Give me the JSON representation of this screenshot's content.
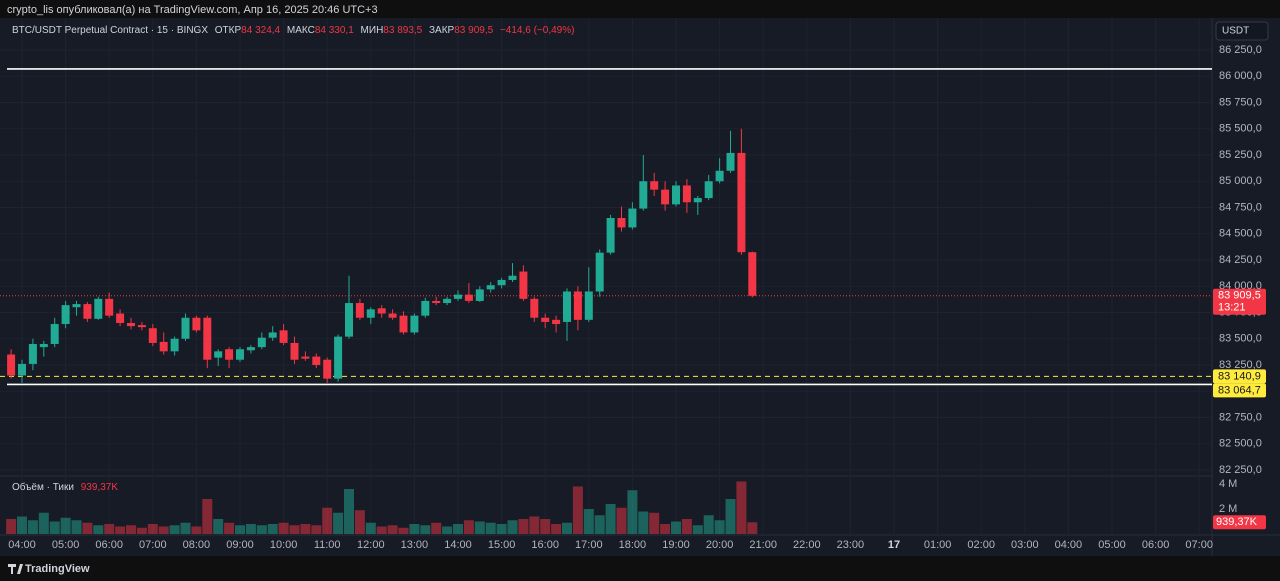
{
  "header": "crypto_lis опубликовал(а) на TradingView.com, Апр 16, 2025 20:46 UTC+3",
  "footer": "TradingView",
  "chart_data": {
    "type": "candlestick",
    "symbol": "BTC/USDT Perpetual Contract · 15 · BINGX",
    "legend": {
      "open_label": "ОТКР",
      "open": "84 324,4",
      "high_label": "МАКС",
      "high": "84 330,1",
      "low_label": "МИН",
      "low": "83 893,5",
      "close_label": "ЗАКР",
      "close": "83 909,5",
      "change": "−414,6 (−0,49%)"
    },
    "currency": "USDT",
    "up_color": "#22ab94",
    "down_color": "#f23645",
    "x": [
      "03:45",
      "04:00",
      "04:15",
      "04:30",
      "04:45",
      "05:00",
      "05:15",
      "05:30",
      "05:45",
      "06:00",
      "06:15",
      "06:30",
      "06:45",
      "07:00",
      "07:15",
      "07:30",
      "07:45",
      "08:00",
      "08:15",
      "08:30",
      "08:45",
      "09:00",
      "09:15",
      "09:30",
      "09:45",
      "10:00",
      "10:15",
      "10:30",
      "10:45",
      "11:00",
      "11:15",
      "11:30",
      "11:45",
      "12:00",
      "12:15",
      "12:30",
      "12:45",
      "13:00",
      "13:15",
      "13:30",
      "13:45",
      "14:00",
      "14:15",
      "14:30",
      "14:45",
      "15:00",
      "15:15",
      "15:30",
      "15:45",
      "16:00",
      "16:15",
      "16:30",
      "16:45",
      "17:00",
      "17:15",
      "17:30",
      "17:45",
      "18:00",
      "18:15",
      "18:30",
      "18:45",
      "19:00",
      "19:15",
      "19:30",
      "19:45",
      "20:00",
      "20:15",
      "20:30",
      "20:45"
    ],
    "open": [
      83350,
      83150,
      83260,
      83420,
      83450,
      83640,
      83800,
      83830,
      83690,
      83880,
      83740,
      83650,
      83630,
      83600,
      83470,
      83380,
      83500,
      83700,
      83700,
      83320,
      83400,
      83300,
      83390,
      83420,
      83510,
      83580,
      83460,
      83330,
      83330,
      83300,
      83120,
      83520,
      83840,
      83700,
      83790,
      83740,
      83720,
      83560,
      83720,
      83860,
      83840,
      83880,
      83920,
      83860,
      83970,
      84010,
      84060,
      84140,
      83880,
      83700,
      83680,
      83660,
      83950,
      83680,
      83950,
      84320,
      84650,
      84560,
      84740,
      85000,
      84920,
      84780,
      84960,
      84800,
      84840,
      85000,
      85100,
      85270,
      84324.4
    ],
    "high": [
      83400,
      83300,
      83500,
      83480,
      83700,
      83860,
      83860,
      83850,
      83900,
      83940,
      83780,
      83700,
      83660,
      83640,
      83560,
      83520,
      83740,
      83720,
      83720,
      83400,
      83420,
      83420,
      83440,
      83560,
      83620,
      83640,
      83520,
      83380,
      83360,
      83320,
      83540,
      84100,
      83880,
      83800,
      83820,
      83780,
      83760,
      83740,
      83890,
      83900,
      83900,
      83960,
      84030,
      84000,
      84040,
      84080,
      84220,
      84200,
      83900,
      83740,
      83720,
      83980,
      84000,
      84180,
      84350,
      84680,
      84760,
      84800,
      85250,
      85080,
      85000,
      85000,
      85020,
      84860,
      85060,
      85220,
      85480,
      85500,
      84330.1
    ],
    "low": [
      83120,
      83080,
      83200,
      83330,
      83420,
      83600,
      83720,
      83660,
      83680,
      83700,
      83620,
      83590,
      83580,
      83430,
      83350,
      83340,
      83480,
      83560,
      83220,
      83240,
      83220,
      83280,
      83360,
      83400,
      83480,
      83440,
      83260,
      83290,
      83220,
      83080,
      83090,
      83500,
      83680,
      83640,
      83700,
      83680,
      83540,
      83540,
      83700,
      83820,
      83820,
      83860,
      83840,
      83850,
      83940,
      83980,
      84040,
      83860,
      83660,
      83600,
      83560,
      83480,
      83580,
      83660,
      83900,
      84300,
      84520,
      84540,
      84720,
      84860,
      84720,
      84760,
      84700,
      84680,
      84820,
      84980,
      85080,
      84300,
      83893.5
    ],
    "close": [
      83150,
      83260,
      83450,
      83450,
      83640,
      83820,
      83830,
      83690,
      83880,
      83720,
      83650,
      83620,
      83610,
      83460,
      83380,
      83500,
      83700,
      83580,
      83300,
      83380,
      83300,
      83400,
      83420,
      83510,
      83560,
      83460,
      83300,
      83310,
      83250,
      83120,
      83520,
      83840,
      83700,
      83780,
      83740,
      83700,
      83560,
      83720,
      83860,
      83840,
      83880,
      83920,
      83860,
      83970,
      84010,
      84060,
      84100,
      83880,
      83700,
      83660,
      83640,
      83950,
      83680,
      83950,
      84320,
      84650,
      84560,
      84740,
      85000,
      84920,
      84780,
      84960,
      84800,
      84840,
      85000,
      85100,
      85270,
      84324.4,
      83909.5
    ],
    "ylim": [
      82202,
      86555
    ],
    "yticks": [
      {
        "value": 82250,
        "label": "82 250,0"
      },
      {
        "value": 82500,
        "label": "82 500,0"
      },
      {
        "value": 82750,
        "label": "82 750,0"
      },
      {
        "value": 83000,
        "label": "83 000,0"
      },
      {
        "value": 83250,
        "label": "83 250,0"
      },
      {
        "value": 83500,
        "label": "83 500,0"
      },
      {
        "value": 83750,
        "label": "83 750,0"
      },
      {
        "value": 84000,
        "label": "84 000,0"
      },
      {
        "value": 84250,
        "label": "84 250,0"
      },
      {
        "value": 84500,
        "label": "84 500,0"
      },
      {
        "value": 84750,
        "label": "84 750,0"
      },
      {
        "value": 85000,
        "label": "85 000,0"
      },
      {
        "value": 85250,
        "label": "85 250,0"
      },
      {
        "value": 85500,
        "label": "85 500,0"
      },
      {
        "value": 85750,
        "label": "85 750,0"
      },
      {
        "value": 86000,
        "label": "86 000,0"
      },
      {
        "value": 86250,
        "label": "86 250,0"
      }
    ],
    "xticks": [
      "04:00",
      "05:00",
      "06:00",
      "07:00",
      "08:00",
      "09:00",
      "10:00",
      "11:00",
      "12:00",
      "13:00",
      "14:00",
      "15:00",
      "16:00",
      "17:00",
      "18:00",
      "19:00",
      "20:00",
      "21:00",
      "22:00",
      "23:00",
      "17",
      "01:00",
      "02:00",
      "03:00",
      "04:00",
      "05:00",
      "06:00",
      "07:00"
    ],
    "hlines": [
      {
        "value": 86070,
        "color": "#ffffff",
        "style": "solid"
      },
      {
        "value": 83064.7,
        "color": "#ffffff",
        "style": "solid"
      },
      {
        "value": 83140.9,
        "color": "#ffeb3b",
        "style": "dashed"
      },
      {
        "value": 83909.5,
        "color": "#f23645",
        "style": "dotted"
      }
    ],
    "price_tags": [
      {
        "value": 83909.5,
        "label": "83 909,5",
        "countdown": "13:21",
        "color": "#f23645"
      },
      {
        "value": 83140.9,
        "label": "83 140,9",
        "color": "#ffeb3b"
      },
      {
        "value": 83064.7,
        "label": "83 064,7",
        "color": "#ffeb3b"
      }
    ],
    "volume": {
      "title": "Объём · Тики",
      "last_label": "939,37K",
      "values": [
        1200000,
        1400000,
        1100000,
        1700000,
        1000000,
        1300000,
        1100000,
        900000,
        700000,
        800000,
        600000,
        700000,
        500000,
        800000,
        600000,
        700000,
        900000,
        600000,
        2800000,
        1200000,
        900000,
        700000,
        800000,
        700000,
        800000,
        900000,
        700000,
        800000,
        700000,
        2100000,
        1700000,
        3600000,
        1900000,
        900000,
        600000,
        700000,
        500000,
        800000,
        700000,
        900000,
        600000,
        800000,
        1100000,
        1000000,
        900000,
        800000,
        1100000,
        1200000,
        1400000,
        1200000,
        800000,
        900000,
        3800000,
        2000000,
        1500000,
        2400000,
        2100000,
        3500000,
        1800000,
        1700000,
        800000,
        1000000,
        1200000,
        700000,
        1500000,
        1100000,
        2800000,
        4200000,
        939370
      ],
      "ylim": [
        0,
        4480000
      ],
      "yticks": [
        {
          "value": 2000000,
          "label": "2 M"
        },
        {
          "value": 4000000,
          "label": "4 M"
        }
      ],
      "tag": {
        "value": 939370,
        "label": "939,37K",
        "color": "#f23645"
      }
    }
  }
}
